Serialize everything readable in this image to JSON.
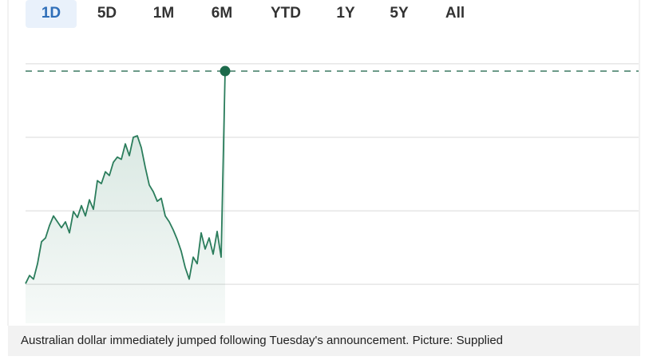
{
  "tabs": [
    "1D",
    "5D",
    "1M",
    "6M",
    "YTD",
    "1Y",
    "5Y",
    "All"
  ],
  "selected_tab": 0,
  "chart_data": {
    "type": "line",
    "x": [
      0,
      1,
      2,
      3,
      4,
      5,
      6,
      7,
      8,
      9,
      10,
      11,
      12,
      13,
      14,
      15,
      16,
      17,
      18,
      19,
      20,
      21,
      22,
      23,
      24,
      25,
      26,
      27,
      28,
      29,
      30,
      31,
      32,
      33,
      34,
      35,
      36,
      37,
      38,
      39,
      40,
      41,
      42,
      43,
      44,
      45,
      46,
      47,
      48,
      49,
      50
    ],
    "values": [
      0.01,
      0.12,
      0.07,
      0.28,
      0.58,
      0.63,
      0.8,
      0.93,
      0.85,
      0.77,
      0.85,
      0.7,
      0.99,
      0.91,
      1.07,
      0.93,
      1.15,
      1.02,
      1.41,
      1.37,
      1.53,
      1.48,
      1.66,
      1.73,
      1.7,
      1.91,
      1.75,
      2.0,
      2.02,
      1.86,
      1.59,
      1.35,
      1.26,
      1.13,
      1.17,
      0.93,
      0.85,
      0.74,
      0.61,
      0.45,
      0.23,
      0.07,
      0.37,
      0.28,
      0.7,
      0.48,
      0.63,
      0.41,
      0.72,
      0.37,
      2.9
    ],
    "color": "#2b7d5c",
    "xlim": [
      0,
      153.6
    ],
    "ylim": [
      -0.53,
      3.02
    ],
    "gridlines": [
      0,
      1,
      2,
      3
    ],
    "reference_line": 2.9,
    "fill": true
  },
  "caption": "Australian dollar immediately jumped following Tuesday's announcement. Picture: Supplied"
}
